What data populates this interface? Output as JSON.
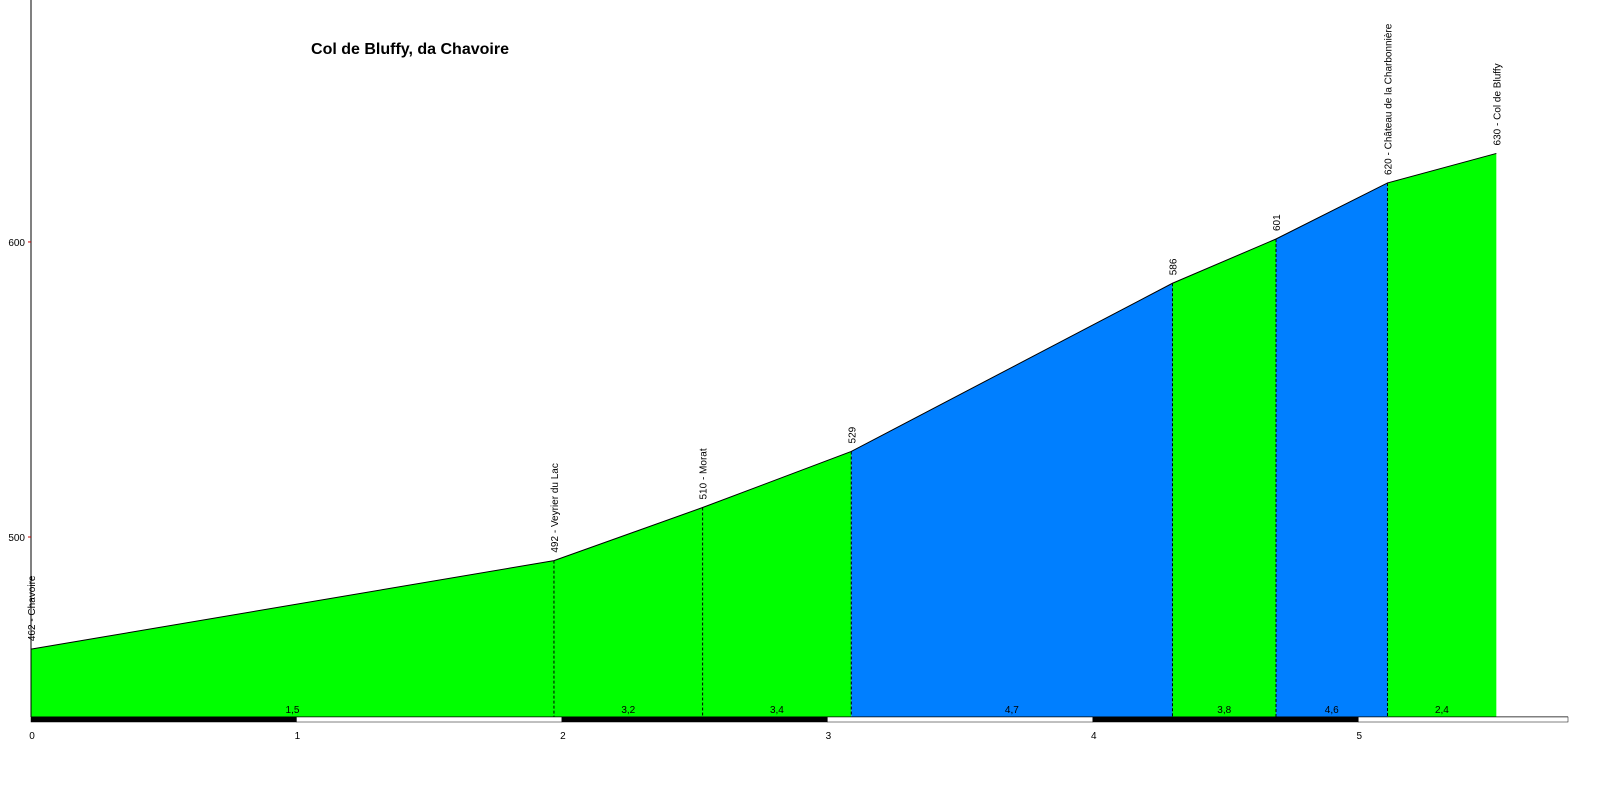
{
  "chart_data": {
    "type": "elevation-profile",
    "title": "Col de Bluffy, da Chavoire",
    "x": [
      0,
      1.97,
      2.53,
      3.09,
      4.3,
      4.69,
      5.11,
      5.52
    ],
    "values": [
      462,
      492,
      510,
      529,
      586,
      601,
      620,
      630
    ],
    "point_labels": [
      "462 - Chavoire",
      "492 - Veyrier du Lac",
      "510 - Morat",
      "529",
      "586",
      "601",
      "620 - Château de la Charbonnière",
      "630 - Col de Bluffy"
    ],
    "gradients": [
      1.5,
      3.2,
      3.4,
      4.7,
      3.8,
      4.6,
      2.4
    ],
    "gradient_labels": [
      "1,5",
      "3,2",
      "3,4",
      "4,7",
      "3,8",
      "4,6",
      "2,4"
    ],
    "segment_colors": [
      "#00ff00",
      "#00ff00",
      "#00ff00",
      "#007fff",
      "#00ff00",
      "#007fff",
      "#00ff00"
    ],
    "xlim": [
      0,
      5.79
    ],
    "ylim": [
      439,
      682
    ],
    "xticks": [
      0,
      1,
      2,
      3,
      4,
      5
    ],
    "yticks": [
      500,
      600
    ]
  }
}
